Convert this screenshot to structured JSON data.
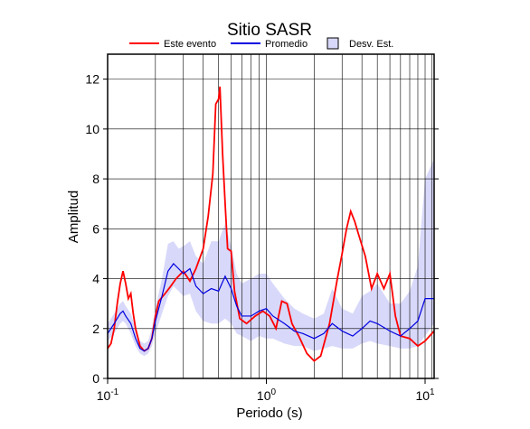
{
  "chart_data": {
    "type": "line",
    "title": "Sitio SASR",
    "x_label": "Periodo (s)",
    "y_label": "Amplitud",
    "log_x": true,
    "xlim": [
      0.1,
      11.4
    ],
    "ylim": [
      0,
      13
    ],
    "xticks": [
      {
        "value": 0.1,
        "label": "10",
        "exponent": "-1"
      },
      {
        "value": 1,
        "label": "10",
        "exponent": "0"
      },
      {
        "value": 10,
        "label": "10",
        "exponent": "1"
      }
    ],
    "xgrid": [
      0.2,
      0.3,
      0.4,
      0.5,
      0.6,
      0.7,
      0.8,
      0.9,
      1,
      2,
      3,
      4,
      5,
      6,
      7,
      8,
      9,
      10,
      11
    ],
    "yticks": [
      0,
      2,
      4,
      6,
      8,
      10,
      12
    ],
    "grid": true,
    "legend": "top",
    "series": [
      {
        "name": "Este evento",
        "color": "#ff0000",
        "x": [
          0.1,
          0.105,
          0.11,
          0.115,
          0.12,
          0.125,
          0.13,
          0.135,
          0.14,
          0.145,
          0.15,
          0.16,
          0.17,
          0.18,
          0.19,
          0.2,
          0.21,
          0.23,
          0.25,
          0.27,
          0.3,
          0.33,
          0.36,
          0.4,
          0.43,
          0.46,
          0.48,
          0.5,
          0.51,
          0.53,
          0.55,
          0.57,
          0.6,
          0.63,
          0.68,
          0.75,
          0.85,
          0.95,
          1.05,
          1.15,
          1.25,
          1.35,
          1.45,
          1.6,
          1.8,
          2.0,
          2.2,
          2.5,
          2.8,
          3.0,
          3.2,
          3.4,
          3.6,
          3.8,
          4.2,
          4.6,
          5.0,
          5.5,
          6.0,
          6.5,
          7.0,
          8.0,
          9.0,
          10,
          11.4
        ],
        "values": [
          1.2,
          1.4,
          2.0,
          3.0,
          3.8,
          4.3,
          3.8,
          3.2,
          3.4,
          2.6,
          2.0,
          1.3,
          1.1,
          1.2,
          1.6,
          2.5,
          3.1,
          3.4,
          3.7,
          4.0,
          4.3,
          3.9,
          4.4,
          5.2,
          6.5,
          8.2,
          11.0,
          11.2,
          11.7,
          9.0,
          7.0,
          5.2,
          5.1,
          3.5,
          2.4,
          2.2,
          2.5,
          2.7,
          2.5,
          2.0,
          3.1,
          3.0,
          2.2,
          1.7,
          1.0,
          0.7,
          0.9,
          2.2,
          4.0,
          5.0,
          6.0,
          6.7,
          6.3,
          5.8,
          4.9,
          3.6,
          4.2,
          3.6,
          4.2,
          2.5,
          1.7,
          1.6,
          1.3,
          1.5,
          1.9
        ]
      },
      {
        "name": "Promedio",
        "color": "#0000e0",
        "x": [
          0.1,
          0.11,
          0.12,
          0.125,
          0.13,
          0.14,
          0.15,
          0.16,
          0.17,
          0.18,
          0.19,
          0.2,
          0.22,
          0.24,
          0.26,
          0.28,
          0.3,
          0.33,
          0.36,
          0.4,
          0.45,
          0.5,
          0.55,
          0.6,
          0.65,
          0.7,
          0.8,
          0.9,
          1.0,
          1.1,
          1.3,
          1.5,
          1.7,
          2.0,
          2.3,
          2.6,
          3.0,
          3.5,
          4.0,
          4.5,
          5.0,
          6.0,
          7.0,
          8.0,
          9.0,
          10,
          11.4
        ],
        "values": [
          1.8,
          2.2,
          2.6,
          2.7,
          2.5,
          2.2,
          1.6,
          1.2,
          1.1,
          1.2,
          1.6,
          2.3,
          3.3,
          4.3,
          4.6,
          4.4,
          4.2,
          4.4,
          3.7,
          3.4,
          3.6,
          3.5,
          4.1,
          3.6,
          2.9,
          2.5,
          2.5,
          2.7,
          2.8,
          2.5,
          2.2,
          1.9,
          1.8,
          1.6,
          1.8,
          2.2,
          1.9,
          1.7,
          2.0,
          2.3,
          2.2,
          1.9,
          1.7,
          2.0,
          2.3,
          3.2,
          3.2
        ]
      }
    ],
    "band": {
      "name": "Desv. Est.",
      "color": "#d8d8fa",
      "x": [
        0.1,
        0.11,
        0.12,
        0.125,
        0.13,
        0.14,
        0.15,
        0.16,
        0.17,
        0.18,
        0.19,
        0.2,
        0.22,
        0.24,
        0.26,
        0.28,
        0.3,
        0.33,
        0.36,
        0.4,
        0.45,
        0.5,
        0.55,
        0.6,
        0.65,
        0.7,
        0.8,
        0.9,
        1.0,
        1.1,
        1.3,
        1.5,
        1.7,
        2.0,
        2.3,
        2.6,
        3.0,
        3.5,
        4.0,
        4.5,
        5.0,
        6.0,
        7.0,
        8.0,
        9.0,
        10,
        11.4
      ],
      "lower": [
        1.5,
        1.8,
        2.2,
        2.3,
        2.2,
        1.8,
        1.3,
        1.0,
        0.9,
        1.0,
        1.3,
        1.8,
        2.6,
        3.3,
        3.7,
        3.5,
        3.3,
        3.4,
        2.7,
        2.3,
        2.2,
        2.2,
        2.4,
        2.2,
        1.8,
        1.7,
        1.5,
        1.7,
        1.6,
        1.6,
        1.4,
        1.3,
        1.3,
        1.1,
        1.2,
        1.3,
        1.2,
        1.2,
        1.4,
        1.5,
        1.4,
        1.3,
        1.2,
        1.2,
        1.3,
        1.7,
        2.2
      ],
      "upper": [
        2.2,
        2.6,
        3.0,
        3.1,
        2.9,
        2.6,
        2.0,
        1.5,
        1.4,
        1.5,
        2.0,
        2.8,
        4.0,
        5.4,
        5.5,
        5.2,
        5.3,
        5.5,
        4.9,
        4.6,
        5.5,
        5.5,
        6.2,
        5.3,
        4.2,
        3.8,
        4.0,
        4.2,
        4.2,
        3.8,
        3.2,
        2.8,
        2.6,
        2.4,
        2.6,
        3.6,
        2.8,
        2.6,
        3.3,
        3.5,
        3.8,
        3.0,
        3.0,
        3.5,
        4.5,
        8.0,
        8.8
      ]
    }
  }
}
